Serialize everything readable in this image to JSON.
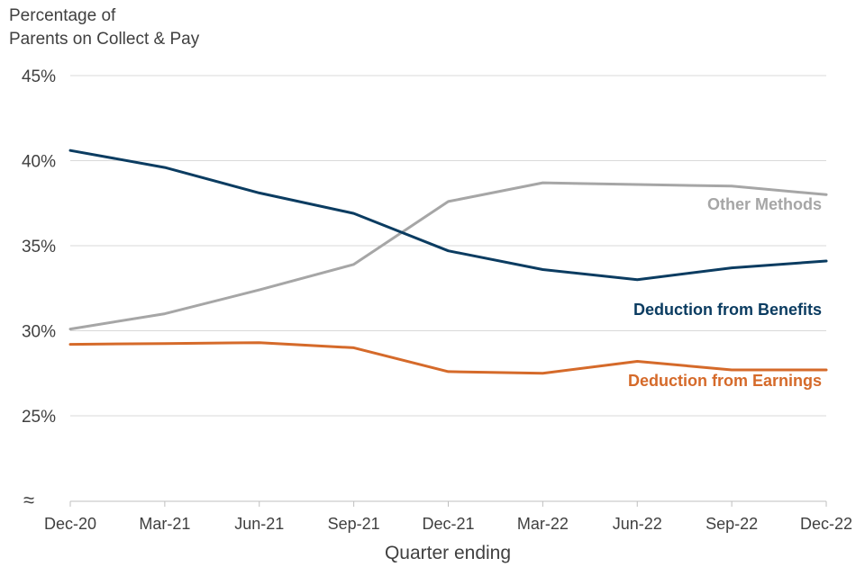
{
  "chart_data": {
    "type": "line",
    "title": "",
    "ylabel_lines": [
      "Percentage of",
      "Parents on Collect & Pay"
    ],
    "xlabel": "Quarter ending",
    "categories": [
      "Dec-20",
      "Mar-21",
      "Jun-21",
      "Sep-21",
      "Dec-21",
      "Mar-22",
      "Jun-22",
      "Sep-22",
      "Dec-22"
    ],
    "yticks": [
      25,
      30,
      35,
      40,
      45
    ],
    "ytick_labels": [
      "25%",
      "30%",
      "35%",
      "40%",
      "45%"
    ],
    "ylim": [
      20,
      45
    ],
    "axis_break_symbol": "≈",
    "grid": true,
    "series": [
      {
        "name": "Other Methods",
        "color": "#a6a6a6",
        "values": [
          30.1,
          31.0,
          32.4,
          33.9,
          37.6,
          38.7,
          38.6,
          38.5,
          38.0
        ]
      },
      {
        "name": "Deduction from Benefits",
        "color": "#0b3c61",
        "values": [
          40.6,
          39.6,
          38.1,
          36.9,
          34.7,
          33.6,
          33.0,
          33.7,
          34.1
        ]
      },
      {
        "name": "Deduction from Earnings",
        "color": "#d56a2a",
        "values": [
          29.2,
          29.25,
          29.3,
          29.0,
          27.6,
          27.5,
          28.2,
          27.7,
          27.7
        ]
      }
    ]
  }
}
